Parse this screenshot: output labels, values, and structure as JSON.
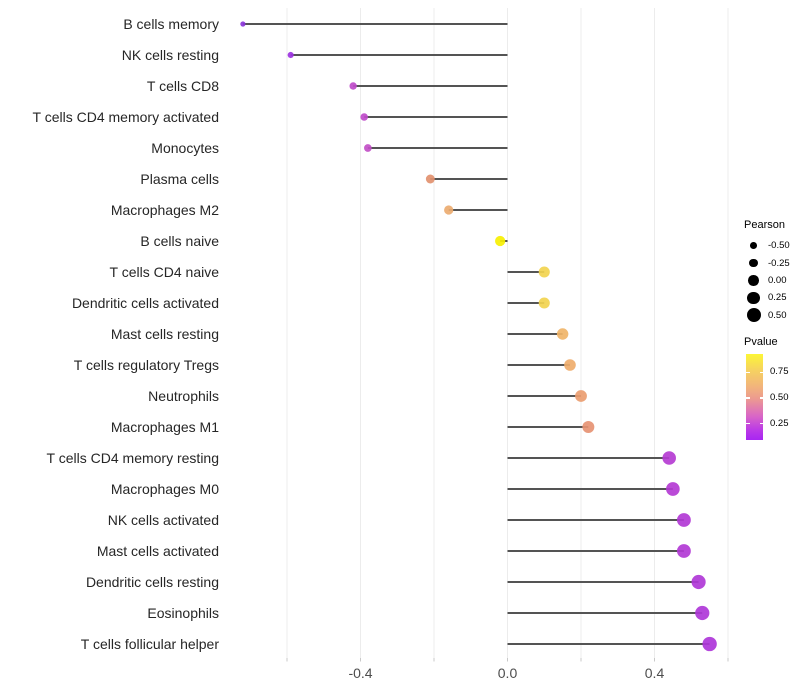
{
  "chart_data": {
    "type": "lollipop",
    "title": "",
    "xlabel": "",
    "ylabel": "",
    "xlim": [
      -0.735,
      0.63
    ],
    "x_ticks": [
      {
        "label": "-0.4",
        "value": -0.4
      },
      {
        "label": "0.0",
        "value": 0.0
      },
      {
        "label": "0.4",
        "value": 0.4
      }
    ],
    "gridline_values": [
      -0.6,
      -0.4,
      -0.2,
      0.0,
      0.2,
      0.4,
      0.6
    ],
    "grid": "on",
    "legend_position": "right",
    "points": [
      {
        "label": "B cells memory",
        "pearson": -0.72,
        "pvalue": 0.09,
        "color": "#8B36D9"
      },
      {
        "label": "NK cells resting",
        "pearson": -0.59,
        "pvalue": 0.11,
        "color": "#9D33E2"
      },
      {
        "label": "T cells CD8",
        "pearson": -0.42,
        "pvalue": 0.24,
        "color": "#BF4BCA"
      },
      {
        "label": "T cells CD4 memory activated",
        "pearson": -0.39,
        "pvalue": 0.24,
        "color": "#BF4BCA"
      },
      {
        "label": "Monocytes",
        "pearson": -0.38,
        "pvalue": 0.25,
        "color": "#C24FC7"
      },
      {
        "label": "Plasma cells",
        "pearson": -0.21,
        "pvalue": 0.55,
        "color": "#E2916F"
      },
      {
        "label": "Macrophages M2",
        "pearson": -0.16,
        "pvalue": 0.63,
        "color": "#ECAB70"
      },
      {
        "label": "B cells naive",
        "pearson": -0.02,
        "pvalue": 0.93,
        "color": "#F7F002"
      },
      {
        "label": "T cells CD4 naive",
        "pearson": 0.1,
        "pvalue": 0.78,
        "color": "#F2D44F"
      },
      {
        "label": "Dendritic cells activated",
        "pearson": 0.1,
        "pvalue": 0.78,
        "color": "#F2D44F"
      },
      {
        "label": "Mast cells resting",
        "pearson": 0.15,
        "pvalue": 0.66,
        "color": "#F0B468"
      },
      {
        "label": "T cells regulatory  Tregs",
        "pearson": 0.17,
        "pvalue": 0.63,
        "color": "#EFAD6B"
      },
      {
        "label": "Neutrophils",
        "pearson": 0.2,
        "pvalue": 0.58,
        "color": "#EA9D70"
      },
      {
        "label": "Macrophages M1",
        "pearson": 0.22,
        "pvalue": 0.55,
        "color": "#E69373"
      },
      {
        "label": "T cells CD4 memory resting",
        "pearson": 0.44,
        "pvalue": 0.2,
        "color": "#B53CD3"
      },
      {
        "label": "Macrophages M0",
        "pearson": 0.45,
        "pvalue": 0.19,
        "color": "#B43BD4"
      },
      {
        "label": "NK cells activated",
        "pearson": 0.48,
        "pvalue": 0.17,
        "color": "#B23AD5"
      },
      {
        "label": "Mast cells activated",
        "pearson": 0.48,
        "pvalue": 0.17,
        "color": "#B23AD5"
      },
      {
        "label": "Dendritic cells resting",
        "pearson": 0.52,
        "pvalue": 0.15,
        "color": "#B038D7"
      },
      {
        "label": "Eosinophils",
        "pearson": 0.53,
        "pvalue": 0.14,
        "color": "#AF37D8"
      },
      {
        "label": "T cells follicular helper",
        "pearson": 0.55,
        "pvalue": 0.13,
        "color": "#AE36D9"
      }
    ],
    "legend_size": {
      "title": "Pearson",
      "entries": [
        {
          "label": "-0.50",
          "value": -0.5
        },
        {
          "label": "-0.25",
          "value": -0.25
        },
        {
          "label": "0.00",
          "value": 0.0
        },
        {
          "label": "0.25",
          "value": 0.25
        },
        {
          "label": "0.50",
          "value": 0.5
        }
      ]
    },
    "legend_color": {
      "title": "Pvalue",
      "p_top": 0.93,
      "p_bottom": 0.09,
      "ticks": [
        {
          "label": "0.75",
          "value": 0.75
        },
        {
          "label": "0.50",
          "value": 0.5
        },
        {
          "label": "0.25",
          "value": 0.25
        }
      ],
      "gradient_top_color": "#FCF636",
      "gradient_bottom_color": "#A826F2"
    }
  },
  "colors": {
    "background": "#FFFFFF",
    "stem": "#545454",
    "grid": "#ECECEC",
    "tick_mark": "#C9C9C9",
    "axis_text": "#4D4D4D",
    "category_text": "#262626",
    "legend_dot": "#000000"
  }
}
